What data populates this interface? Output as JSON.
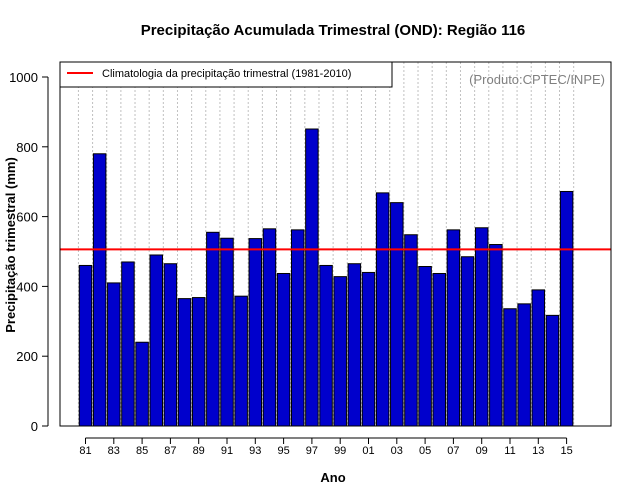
{
  "chart_data": {
    "type": "bar",
    "title": "Precipitação Acumulada Trimestral (OND): Região 116",
    "xlabel": "Ano",
    "ylabel": "Precipitação trimestral (mm)",
    "ylim": [
      0,
      1050
    ],
    "yticks": [
      0,
      200,
      400,
      600,
      800,
      1000
    ],
    "grid": "vertical dotted",
    "legend_position": "top-left",
    "credit": "(Produto:CPTEC/INPE)",
    "colors": {
      "bar": "#0000cc",
      "bar_edge": "#000000",
      "reference_line": "#ff0000",
      "grid": "#c0c0c0",
      "credit": "#808080"
    },
    "categories": [
      "81",
      "82",
      "83",
      "84",
      "85",
      "86",
      "87",
      "88",
      "89",
      "90",
      "91",
      "92",
      "93",
      "94",
      "95",
      "96",
      "97",
      "98",
      "99",
      "00",
      "01",
      "02",
      "03",
      "04",
      "05",
      "06",
      "07",
      "08",
      "09",
      "10",
      "11",
      "12",
      "13",
      "14",
      "15"
    ],
    "x_tick_labels": [
      "81",
      "83",
      "85",
      "87",
      "89",
      "91",
      "93",
      "95",
      "97",
      "99",
      "01",
      "03",
      "05",
      "07",
      "09",
      "11",
      "13",
      "15"
    ],
    "series": [
      {
        "name": "Precipitação acumulada trimestral (OND)",
        "values": [
          460,
          780,
          410,
          470,
          240,
          490,
          465,
          365,
          368,
          555,
          538,
          372,
          537,
          565,
          437,
          562,
          851,
          460,
          428,
          465,
          440,
          668,
          640,
          548,
          457,
          437,
          562,
          485,
          568,
          520,
          336,
          350,
          390,
          317,
          672
        ]
      }
    ],
    "reference_line": {
      "label": "Climatologia da precipitação trimestral (1981-2010)",
      "value": 506
    }
  }
}
